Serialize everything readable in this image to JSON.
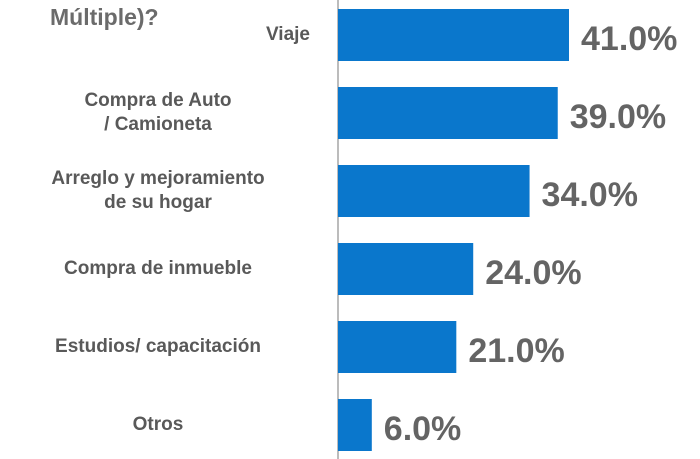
{
  "chart_data": {
    "type": "bar",
    "orientation": "horizontal",
    "title": "Múltiple)?",
    "categories": [
      "Viaje",
      "Compra de Auto\n/ Camioneta",
      "Arreglo y mejoramiento\nde su hogar",
      "Compra de inmueble",
      "Estudios/ capacitación",
      "Otros"
    ],
    "values": [
      41.0,
      39.0,
      34.0,
      24.0,
      21.0,
      6.0
    ],
    "value_labels": [
      "41.0%",
      "39.0%",
      "34.0%",
      "24.0%",
      "21.0%",
      "6.0%"
    ],
    "color": "#0a77cc"
  }
}
